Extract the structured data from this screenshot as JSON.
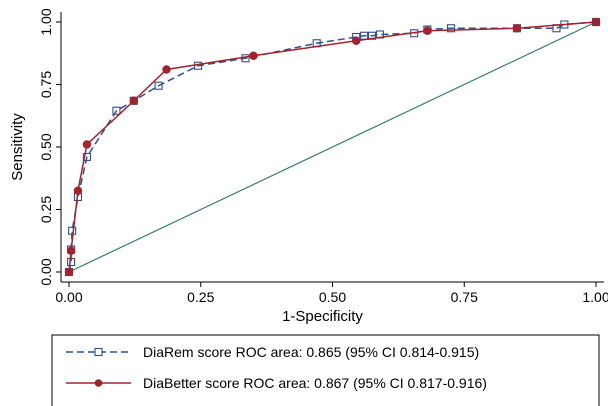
{
  "chart_data": {
    "type": "line",
    "xlabel": "1-Specificity",
    "ylabel": "Sensitivity",
    "xlim": [
      0,
      1
    ],
    "ylim": [
      0,
      1
    ],
    "xticks": [
      "0.00",
      "0.25",
      "0.50",
      "0.75",
      "1.00"
    ],
    "yticks": [
      "0.00",
      "0.25",
      "0.50",
      "0.75",
      "1.00"
    ],
    "grid": false,
    "legend_position": "bottom",
    "colors": {
      "diarem": "#2f4f8f",
      "diabetter": "#a3232d",
      "reference": "#2f7a6a"
    },
    "series": [
      {
        "name": "DiaRem score ROC area: 0.865 (95% CI 0.814-0.915)",
        "marker": "hollow-square",
        "line": "dashed",
        "x": [
          0,
          0.004,
          0.004,
          0.006,
          0.017,
          0.034,
          0.09,
          0.123,
          0.17,
          0.245,
          0.335,
          0.47,
          0.545,
          0.56,
          0.575,
          0.59,
          0.655,
          0.68,
          0.725,
          0.85,
          0.925,
          0.94,
          1.0
        ],
        "y": [
          0,
          0.04,
          0.09,
          0.165,
          0.3,
          0.46,
          0.645,
          0.685,
          0.745,
          0.825,
          0.855,
          0.915,
          0.94,
          0.945,
          0.945,
          0.95,
          0.955,
          0.97,
          0.975,
          0.975,
          0.975,
          0.99,
          1.0
        ]
      },
      {
        "name": "DiaBetter score ROC area: 0.867 (95% CI 0.817-0.916)",
        "marker": "filled-circle",
        "line": "solid",
        "x": [
          0,
          0.004,
          0.017,
          0.034,
          0.123,
          0.185,
          0.35,
          0.545,
          0.68,
          0.85,
          1.0
        ],
        "y": [
          0,
          0.085,
          0.325,
          0.51,
          0.685,
          0.81,
          0.865,
          0.925,
          0.965,
          0.975,
          1.0
        ]
      },
      {
        "name": "",
        "marker": "none",
        "line": "solid",
        "x": [
          0,
          1
        ],
        "y": [
          0,
          1
        ]
      }
    ]
  }
}
